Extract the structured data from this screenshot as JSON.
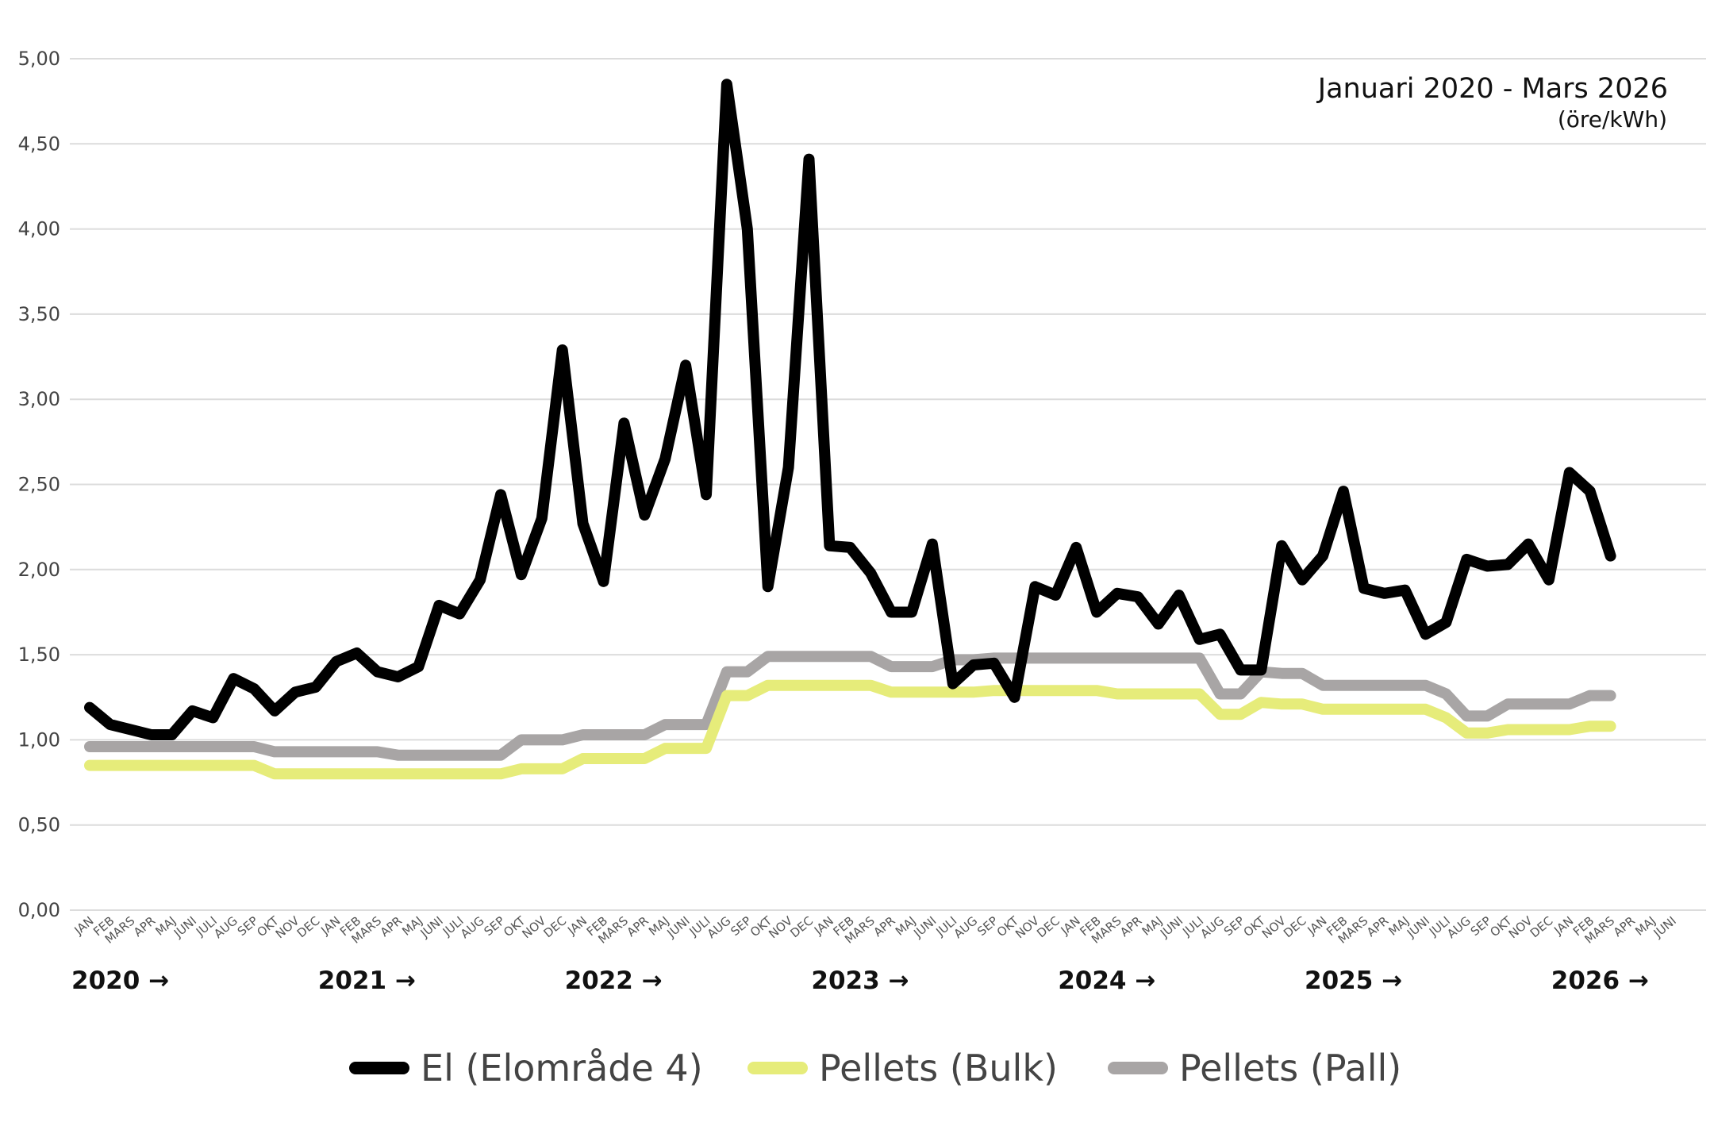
{
  "chart_data": {
    "type": "line",
    "title": "Januari 2020 - Mars 2026",
    "subtitle": "(öre/kWh)",
    "ylim": [
      0,
      5
    ],
    "yticks": [
      "0,00",
      "0,50",
      "1,00",
      "1,50",
      "2,00",
      "2,50",
      "3,00",
      "3,50",
      "4,00",
      "4,50",
      "5,00"
    ],
    "grid": true,
    "legend_position": "bottom",
    "x_labels": [
      "JAN",
      "FEB",
      "MARS",
      "APR",
      "MAJ",
      "JUNI",
      "JULI",
      "AUG",
      "SEP",
      "OKT",
      "NOV",
      "DEC",
      "JAN",
      "FEB",
      "MARS",
      "APR",
      "MAJ",
      "JUNI",
      "JULI",
      "AUG",
      "SEP",
      "OKT",
      "NOV",
      "DEC",
      "JAN",
      "FEB",
      "MARS",
      "APR",
      "MAJ",
      "JUNI",
      "JULI",
      "AUG",
      "SEP",
      "OKT",
      "NOV",
      "DEC",
      "JAN",
      "FEB",
      "MARS",
      "APR",
      "MAJ",
      "JUNI",
      "JULI",
      "AUG",
      "SEP",
      "OKT",
      "NOV",
      "DEC",
      "JAN",
      "FEB",
      "MARS",
      "APR",
      "MAJ",
      "JUNI",
      "JULI",
      "AUG",
      "SEP",
      "OKT",
      "NOV",
      "DEC",
      "JAN",
      "FEB",
      "MARS",
      "APR",
      "MAJ",
      "JUNI",
      "JULI",
      "AUG",
      "SEP",
      "OKT",
      "NOV",
      "DEC",
      "JAN",
      "FEB",
      "MARS",
      "APR",
      "MAJ",
      "JUNI"
    ],
    "year_labels": [
      {
        "label": "2020 →",
        "index": 0
      },
      {
        "label": "2021 →",
        "index": 12
      },
      {
        "label": "2022 →",
        "index": 24
      },
      {
        "label": "2023 →",
        "index": 36
      },
      {
        "label": "2024 →",
        "index": 48
      },
      {
        "label": "2025 →",
        "index": 60
      },
      {
        "label": "2026 →",
        "index": 72
      }
    ],
    "series": [
      {
        "name": "El (Elområde 4)",
        "color": "#000000",
        "values": [
          1.19,
          1.09,
          1.06,
          1.03,
          1.03,
          1.17,
          1.13,
          1.36,
          1.3,
          1.17,
          1.28,
          1.31,
          1.46,
          1.51,
          1.4,
          1.37,
          1.43,
          1.79,
          1.74,
          1.94,
          2.44,
          1.97,
          2.3,
          3.29,
          2.27,
          1.93,
          2.86,
          2.32,
          2.65,
          3.2,
          2.44,
          4.85,
          4.0,
          1.9,
          2.6,
          4.41,
          2.14,
          2.13,
          1.98,
          1.75,
          1.75,
          2.15,
          1.33,
          1.44,
          1.45,
          1.25,
          1.9,
          1.85,
          2.13,
          1.75,
          1.86,
          1.84,
          1.68,
          1.85,
          1.59,
          1.62,
          1.41,
          1.41,
          2.14,
          1.94,
          2.08,
          2.46,
          1.89,
          1.86,
          1.88,
          1.62,
          1.69,
          2.06,
          2.02,
          2.03,
          2.15,
          1.94,
          2.57,
          2.46,
          2.08
        ]
      },
      {
        "name": "Pellets (Bulk)",
        "color": "#e6ec7a",
        "values": [
          0.85,
          0.85,
          0.85,
          0.85,
          0.85,
          0.85,
          0.85,
          0.85,
          0.85,
          0.8,
          0.8,
          0.8,
          0.8,
          0.8,
          0.8,
          0.8,
          0.8,
          0.8,
          0.8,
          0.8,
          0.8,
          0.83,
          0.83,
          0.83,
          0.89,
          0.89,
          0.89,
          0.89,
          0.95,
          0.95,
          0.95,
          1.26,
          1.26,
          1.32,
          1.32,
          1.32,
          1.32,
          1.32,
          1.32,
          1.28,
          1.28,
          1.28,
          1.28,
          1.28,
          1.29,
          1.29,
          1.29,
          1.29,
          1.29,
          1.29,
          1.27,
          1.27,
          1.27,
          1.27,
          1.27,
          1.15,
          1.15,
          1.22,
          1.21,
          1.21,
          1.18,
          1.18,
          1.18,
          1.18,
          1.18,
          1.18,
          1.13,
          1.04,
          1.04,
          1.06,
          1.06,
          1.06,
          1.06,
          1.08,
          1.08
        ]
      },
      {
        "name": "Pellets (Pall)",
        "color": "#a8a5a5",
        "values": [
          0.96,
          0.96,
          0.96,
          0.96,
          0.96,
          0.96,
          0.96,
          0.96,
          0.96,
          0.93,
          0.93,
          0.93,
          0.93,
          0.93,
          0.93,
          0.91,
          0.91,
          0.91,
          0.91,
          0.91,
          0.91,
          1.0,
          1.0,
          1.0,
          1.03,
          1.03,
          1.03,
          1.03,
          1.09,
          1.09,
          1.09,
          1.4,
          1.4,
          1.49,
          1.49,
          1.49,
          1.49,
          1.49,
          1.49,
          1.43,
          1.43,
          1.43,
          1.47,
          1.47,
          1.48,
          1.48,
          1.48,
          1.48,
          1.48,
          1.48,
          1.48,
          1.48,
          1.48,
          1.48,
          1.48,
          1.27,
          1.27,
          1.4,
          1.39,
          1.39,
          1.32,
          1.32,
          1.32,
          1.32,
          1.32,
          1.32,
          1.27,
          1.14,
          1.14,
          1.21,
          1.21,
          1.21,
          1.21,
          1.26,
          1.26
        ]
      }
    ]
  }
}
